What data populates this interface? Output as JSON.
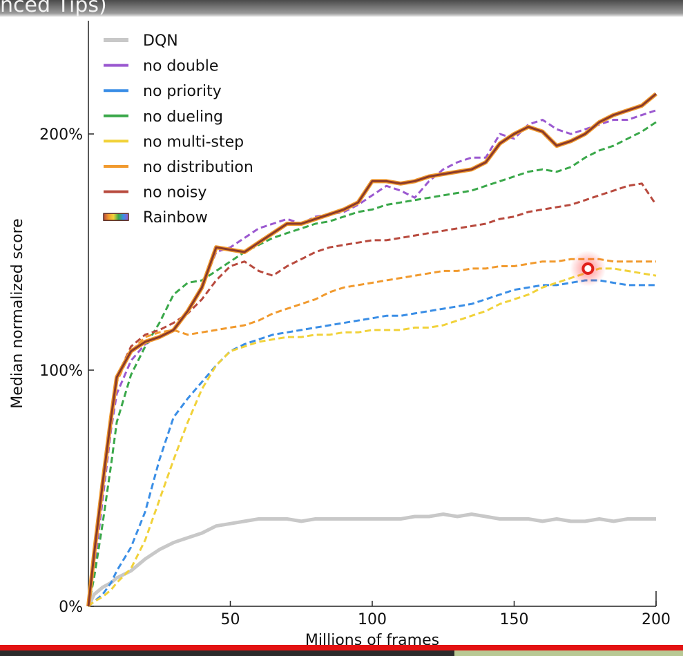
{
  "caption": {
    "text": "nced Tips)"
  },
  "chart_data": {
    "type": "line",
    "xlabel": "Millions of frames",
    "ylabel": "Median normalized score",
    "xlim": [
      0,
      200
    ],
    "ylim": [
      0,
      2.4
    ],
    "x_ticks": [
      50,
      100,
      150,
      200
    ],
    "x_tick_labels": [
      "50",
      "100",
      "150",
      "200"
    ],
    "y_ticks": [
      0,
      1,
      2
    ],
    "y_tick_labels": [
      "0%",
      "100%",
      "200%"
    ],
    "grid": false,
    "legend_position": "top-left",
    "x": [
      0,
      2,
      5,
      8,
      10,
      15,
      20,
      25,
      30,
      35,
      40,
      45,
      50,
      55,
      60,
      65,
      70,
      75,
      80,
      85,
      90,
      95,
      100,
      105,
      110,
      115,
      120,
      125,
      130,
      135,
      140,
      145,
      150,
      155,
      160,
      165,
      170,
      175,
      180,
      185,
      190,
      195,
      200
    ],
    "series": [
      {
        "name": "DQN",
        "color": "#c8c8c8",
        "style": "solid",
        "values": [
          0,
          0.05,
          0.08,
          0.1,
          0.12,
          0.15,
          0.2,
          0.24,
          0.27,
          0.29,
          0.31,
          0.34,
          0.35,
          0.36,
          0.37,
          0.37,
          0.37,
          0.36,
          0.37,
          0.37,
          0.37,
          0.37,
          0.37,
          0.37,
          0.37,
          0.38,
          0.38,
          0.39,
          0.38,
          0.39,
          0.38,
          0.37,
          0.37,
          0.37,
          0.36,
          0.37,
          0.36,
          0.36,
          0.37,
          0.36,
          0.37,
          0.37,
          0.37
        ]
      },
      {
        "name": "no double",
        "color": "#9b59d0",
        "style": "dashed",
        "values": [
          0,
          0.15,
          0.45,
          0.75,
          0.9,
          1.04,
          1.11,
          1.14,
          1.17,
          1.25,
          1.35,
          1.5,
          1.52,
          1.56,
          1.6,
          1.62,
          1.64,
          1.62,
          1.65,
          1.66,
          1.67,
          1.7,
          1.74,
          1.78,
          1.76,
          1.73,
          1.8,
          1.85,
          1.88,
          1.9,
          1.9,
          2.0,
          1.98,
          2.04,
          2.06,
          2.02,
          2.0,
          2.02,
          2.04,
          2.06,
          2.06,
          2.08,
          2.1
        ]
      },
      {
        "name": "no priority",
        "color": "#3a8ee6",
        "style": "dashed",
        "values": [
          0,
          0.02,
          0.05,
          0.1,
          0.15,
          0.25,
          0.4,
          0.62,
          0.8,
          0.88,
          0.95,
          1.02,
          1.08,
          1.11,
          1.13,
          1.15,
          1.16,
          1.17,
          1.18,
          1.19,
          1.2,
          1.21,
          1.22,
          1.23,
          1.23,
          1.24,
          1.25,
          1.26,
          1.27,
          1.28,
          1.3,
          1.32,
          1.34,
          1.35,
          1.36,
          1.36,
          1.37,
          1.38,
          1.38,
          1.37,
          1.36,
          1.36,
          1.36
        ]
      },
      {
        "name": "no dueling",
        "color": "#3aa84a",
        "style": "dashed",
        "values": [
          0,
          0.12,
          0.35,
          0.6,
          0.78,
          0.98,
          1.1,
          1.2,
          1.32,
          1.37,
          1.38,
          1.42,
          1.46,
          1.5,
          1.53,
          1.56,
          1.58,
          1.6,
          1.62,
          1.63,
          1.65,
          1.67,
          1.68,
          1.7,
          1.71,
          1.72,
          1.73,
          1.74,
          1.75,
          1.76,
          1.78,
          1.8,
          1.82,
          1.84,
          1.85,
          1.84,
          1.86,
          1.9,
          1.93,
          1.95,
          1.98,
          2.01,
          2.05
        ]
      },
      {
        "name": "no multi-step",
        "color": "#f1d23a",
        "style": "dashed",
        "values": [
          0,
          0.02,
          0.04,
          0.07,
          0.1,
          0.16,
          0.28,
          0.45,
          0.62,
          0.78,
          0.92,
          1.02,
          1.08,
          1.1,
          1.12,
          1.13,
          1.14,
          1.14,
          1.15,
          1.15,
          1.16,
          1.16,
          1.17,
          1.17,
          1.17,
          1.18,
          1.18,
          1.19,
          1.21,
          1.23,
          1.25,
          1.28,
          1.3,
          1.32,
          1.35,
          1.37,
          1.39,
          1.41,
          1.43,
          1.43,
          1.42,
          1.41,
          1.4
        ]
      },
      {
        "name": "no distribution",
        "color": "#f19a2e",
        "style": "dashed",
        "values": [
          0,
          0.2,
          0.5,
          0.78,
          0.95,
          1.08,
          1.14,
          1.16,
          1.17,
          1.15,
          1.16,
          1.17,
          1.18,
          1.19,
          1.21,
          1.24,
          1.26,
          1.28,
          1.3,
          1.33,
          1.35,
          1.36,
          1.37,
          1.38,
          1.39,
          1.4,
          1.41,
          1.42,
          1.42,
          1.43,
          1.43,
          1.44,
          1.44,
          1.45,
          1.46,
          1.46,
          1.47,
          1.47,
          1.47,
          1.46,
          1.46,
          1.46,
          1.46
        ]
      },
      {
        "name": "no noisy",
        "color": "#b84a3e",
        "style": "dashed",
        "values": [
          0,
          0.22,
          0.52,
          0.8,
          0.97,
          1.1,
          1.15,
          1.17,
          1.2,
          1.24,
          1.3,
          1.38,
          1.44,
          1.46,
          1.42,
          1.4,
          1.44,
          1.47,
          1.5,
          1.52,
          1.53,
          1.54,
          1.55,
          1.55,
          1.56,
          1.57,
          1.58,
          1.59,
          1.6,
          1.61,
          1.62,
          1.64,
          1.65,
          1.67,
          1.68,
          1.69,
          1.7,
          1.72,
          1.74,
          1.76,
          1.78,
          1.79,
          1.7
        ]
      },
      {
        "name": "Rainbow",
        "color": "#8b3a2a",
        "style": "rainbow",
        "values": [
          0,
          0.22,
          0.52,
          0.8,
          0.97,
          1.08,
          1.12,
          1.14,
          1.17,
          1.25,
          1.35,
          1.52,
          1.51,
          1.5,
          1.54,
          1.58,
          1.62,
          1.62,
          1.64,
          1.66,
          1.68,
          1.71,
          1.8,
          1.8,
          1.79,
          1.8,
          1.82,
          1.83,
          1.84,
          1.85,
          1.88,
          1.96,
          2.0,
          2.03,
          2.01,
          1.95,
          1.97,
          2.0,
          2.05,
          2.08,
          2.1,
          2.12,
          2.17
        ]
      }
    ]
  },
  "marker": {
    "x": 176,
    "y": 1.43,
    "color": "#e0201a"
  }
}
